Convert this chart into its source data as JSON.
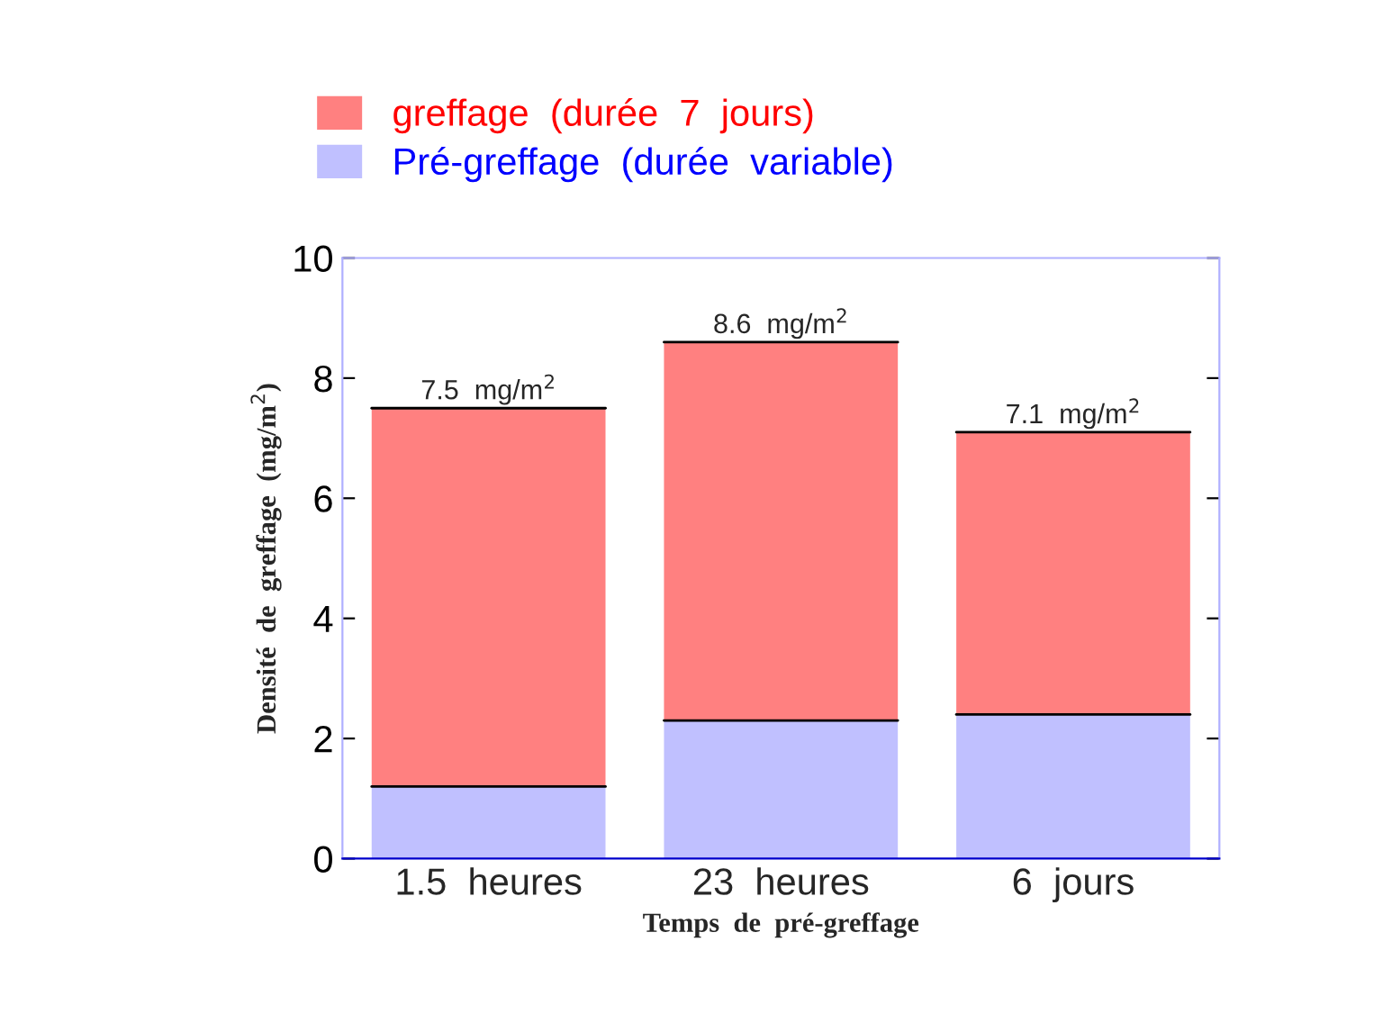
{
  "chart_data": {
    "type": "bar",
    "stacked": true,
    "categories": [
      "1.5  heures",
      "23  heures",
      "6  jours"
    ],
    "xlabel": "Temps  de  pré-greffage",
    "ylabel": "Densité  de  greffage  (mg/m$^{2}$)",
    "series": [
      {
        "name": "Pré-greffage  (durée  variable)",
        "color": "#c0c0ff",
        "values": [
          1.2,
          2.3,
          2.4
        ]
      },
      {
        "name": "greffage  (durée  7  jours)",
        "color": "#ff8080",
        "values": [
          6.3,
          6.3,
          4.7
        ]
      }
    ],
    "totals": [
      "7.5  mg/m$^{2}$",
      "8.6  mg/m$^{2}$",
      "7.1  mg/m$^{2}$"
    ],
    "ylim": [
      0,
      10
    ],
    "yticks": [
      0,
      2,
      4,
      6,
      8,
      10
    ],
    "grid": false,
    "legend": "top"
  }
}
